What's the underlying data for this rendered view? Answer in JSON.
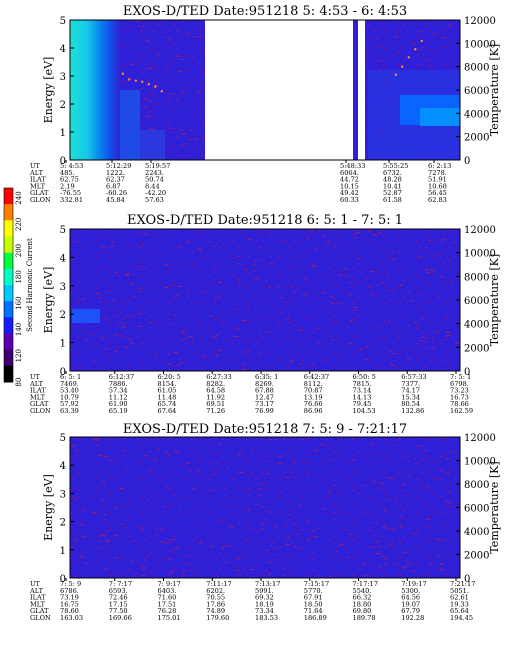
{
  "colorbar": {
    "label": "Second Harmonic Current",
    "ticks": [
      "80",
      "120",
      "140",
      "160",
      "180",
      "200",
      "220",
      "240"
    ],
    "colors": [
      "#000000",
      "#3a0070",
      "#5b00b0",
      "#1a1aff",
      "#0070ff",
      "#00c8ff",
      "#00ffc0",
      "#00ff40",
      "#c8ff00",
      "#ffff00",
      "#ff8000",
      "#ff0000"
    ]
  },
  "chart_data": [
    {
      "type": "heatmap",
      "title": "EXOS-D/TED   Date:951218  5: 4:53 - 6: 4:53",
      "ylabel": "Energy [eV]",
      "y2label": "Temperature [K]",
      "ylim": [
        0,
        5
      ],
      "y2lim": [
        0,
        12000
      ],
      "yticks": [
        "0",
        "1",
        "2",
        "3",
        "4",
        "5"
      ],
      "y2ticks": [
        "0",
        "2000",
        "4000",
        "6000",
        "8000",
        "10000",
        "12000"
      ],
      "data_gaps": [
        "5:19:57 - 5:48:33",
        "5:48:33 - 5:50:50"
      ],
      "orbit": {
        "labels": [
          "UT",
          "ALT",
          "ILAT",
          "MLT",
          "GLAT",
          "GLON"
        ],
        "columns": [
          [
            "5: 4:53",
            "485.",
            "62.75",
            "2.19",
            "-76.55",
            "332.81"
          ],
          [
            "5:12:29",
            "1222.",
            "62.37",
            "6.87",
            "-60.26",
            "45.84"
          ],
          [
            "5:19:57",
            "2243.",
            "50.74",
            "8.44",
            "-42.20",
            "57.63"
          ],
          [
            "5:48:33",
            "6064.",
            "44.72",
            "10.15",
            "49.42",
            "60.33"
          ],
          [
            "5:55:25",
            "6732.",
            "48.28",
            "10.41",
            "52.87",
            "61.58"
          ],
          [
            "6: 2:13",
            "7278.",
            "51.91",
            "10.68",
            "56.45",
            "62.83"
          ]
        ]
      },
      "temperature_points_K": [
        {
          "t": "5:13:00",
          "T": 7400
        },
        {
          "t": "5:14:00",
          "T": 6900
        },
        {
          "t": "5:15:00",
          "T": 6800
        },
        {
          "t": "5:16:00",
          "T": 6700
        },
        {
          "t": "5:17:00",
          "T": 6500
        },
        {
          "t": "5:18:00",
          "T": 6300
        },
        {
          "t": "5:19:00",
          "T": 5900
        },
        {
          "t": "5:55:00",
          "T": 7300
        },
        {
          "t": "5:56:00",
          "T": 8000
        },
        {
          "t": "5:57:00",
          "T": 8800
        },
        {
          "t": "5:58:00",
          "T": 9500
        },
        {
          "t": "5:59:00",
          "T": 10200
        }
      ]
    },
    {
      "type": "heatmap",
      "title": "EXOS-D/TED   Date:951218  6: 5: 1 - 7: 5: 1",
      "ylabel": "Energy [eV]",
      "y2label": "Temperature [K]",
      "ylim": [
        0,
        5
      ],
      "y2lim": [
        0,
        12000
      ],
      "yticks": [
        "0",
        "1",
        "2",
        "3",
        "4",
        "5"
      ],
      "y2ticks": [
        "0",
        "2000",
        "4000",
        "6000",
        "8000",
        "10000",
        "12000"
      ],
      "orbit": {
        "labels": [
          "UT",
          "ALT",
          "ILAT",
          "MLT",
          "GLAT",
          "GLON"
        ],
        "columns": [
          [
            "6: 5: 1",
            "7469.",
            "53.40",
            "10.79",
            "57.92",
            "63.39"
          ],
          [
            "6:12:37",
            "7886.",
            "57.34",
            "11.12",
            "61.90",
            "65.19"
          ],
          [
            "6:20: 5",
            "8154.",
            "61.05",
            "11.48",
            "65.74",
            "67.64"
          ],
          [
            "6:27:33",
            "8282.",
            "64.58",
            "11.92",
            "69.51",
            "71.26"
          ],
          [
            "6:35: 1",
            "8269.",
            "67.88",
            "12.47",
            "73.17",
            "76.99"
          ],
          [
            "6:42:37",
            "8112.",
            "70.87",
            "13.19",
            "76.66",
            "86.96"
          ],
          [
            "6:50: 5",
            "7815.",
            "73.14",
            "14.13",
            "79.45",
            "104.53"
          ],
          [
            "6:57:33",
            "7377.",
            "74.17",
            "15.34",
            "80.54",
            "132.86"
          ],
          [
            "7: 5: 1",
            "6798.",
            "73.23",
            "16.73",
            "78.66",
            "162.59"
          ]
        ]
      }
    },
    {
      "type": "heatmap",
      "title": "EXOS-D/TED   Date:951218  7: 5: 9 - 7:21:17",
      "ylabel": "Energy [eV]",
      "y2label": "Temperature [K]",
      "ylim": [
        0,
        5
      ],
      "y2lim": [
        0,
        12000
      ],
      "yticks": [
        "0",
        "1",
        "2",
        "3",
        "4",
        "5"
      ],
      "y2ticks": [
        "0",
        "2000",
        "4000",
        "6000",
        "8000",
        "10000",
        "12000"
      ],
      "orbit": {
        "labels": [
          "UT",
          "ALT",
          "ILAT",
          "MLT",
          "GLAT",
          "GLON"
        ],
        "columns": [
          [
            "7: 5: 9",
            "6786.",
            "73.19",
            "16.75",
            "78.60",
            "163.03"
          ],
          [
            "7: 7:17",
            "6593.",
            "72.46",
            "17.15",
            "77.50",
            "169.66"
          ],
          [
            "7: 9:17",
            "6403.",
            "71.60",
            "17.51",
            "76.28",
            "175.01"
          ],
          [
            "7:11:17",
            "6202.",
            "70.55",
            "17.86",
            "74.89",
            "179.60"
          ],
          [
            "7:13:17",
            "5991.",
            "69.32",
            "18.19",
            "73.34",
            "183.53"
          ],
          [
            "7:15:17",
            "5770.",
            "67.91",
            "18.50",
            "71.64",
            "186.89"
          ],
          [
            "7:17:17",
            "5540.",
            "66.32",
            "18.80",
            "69.80",
            "189.78"
          ],
          [
            "7:19:17",
            "5300.",
            "64.56",
            "19.07",
            "67.79",
            "192.28"
          ],
          [
            "7:21:17",
            "5051.",
            "62.61",
            "19.33",
            "65.64",
            "194.45"
          ]
        ]
      }
    }
  ]
}
